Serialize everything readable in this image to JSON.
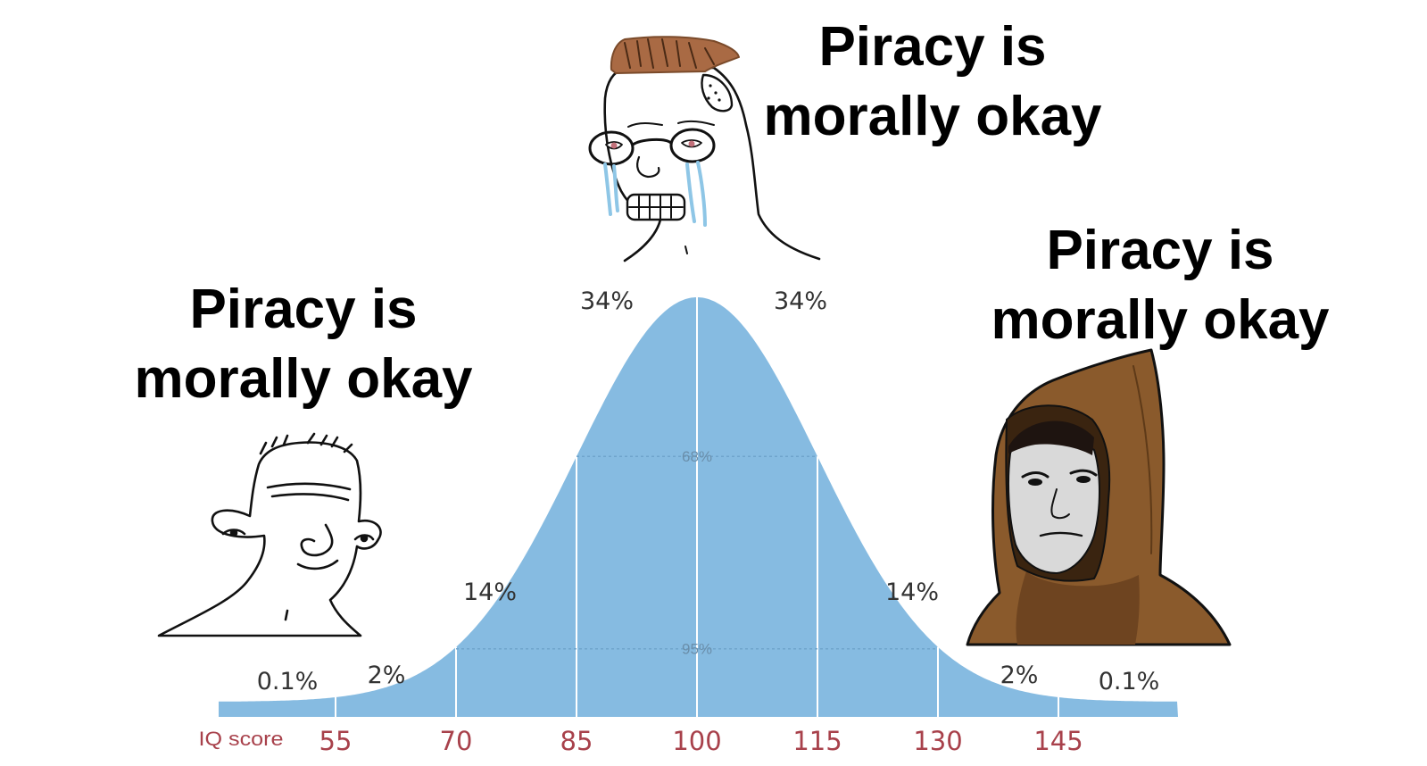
{
  "captions": {
    "left": {
      "line1": "Piracy is",
      "line2": "morally okay"
    },
    "top": {
      "line1": "Piracy is",
      "line2": "morally okay"
    },
    "right": {
      "line1": "Piracy is",
      "line2": "morally okay"
    }
  },
  "chart_data": {
    "type": "area",
    "xlabel": "IQ score",
    "x_ticks": [
      "55",
      "70",
      "85",
      "100",
      "115",
      "130",
      "145"
    ],
    "x_range": [
      40,
      160
    ],
    "mean": 100,
    "sd": 15,
    "band_labels": {
      "outer_left": "0.1%",
      "far_left": "2%",
      "mid_left": "14%",
      "center_left": "34%",
      "center_right": "34%",
      "mid_right": "14%",
      "far_right": "2%",
      "outer_right": "0.1%"
    },
    "interval_labels": {
      "one_sd": "68%",
      "two_sd": "95%"
    }
  },
  "colors": {
    "curve_fill": "#86bbe1",
    "axis_label": "#a8414b",
    "band_text": "#333333",
    "hood": "#8a5a2c",
    "hair": "#a0643a"
  },
  "characters": {
    "left": "wojak-face-icon",
    "top": "crying-nerd-face-icon",
    "right": "hooded-monk-face-icon"
  }
}
